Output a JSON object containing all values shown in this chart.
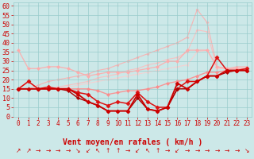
{
  "bg_color": "#cce8e8",
  "grid_color": "#99cccc",
  "xlabel": "Vent moyen/en rafales ( km/h )",
  "xlabel_color": "#cc0000",
  "xlabel_fontsize": 7,
  "tick_color": "#cc0000",
  "ylim": [
    0,
    62
  ],
  "xlim": [
    -0.5,
    23.5
  ],
  "yticks": [
    0,
    5,
    10,
    15,
    20,
    25,
    30,
    35,
    40,
    45,
    50,
    55,
    60
  ],
  "xticks": [
    0,
    1,
    2,
    3,
    4,
    5,
    6,
    7,
    8,
    9,
    10,
    11,
    12,
    13,
    14,
    15,
    16,
    17,
    18,
    19,
    20,
    21,
    22,
    23
  ],
  "lines": [
    {
      "y": [
        15,
        15,
        17,
        19,
        20,
        21,
        22,
        23,
        25,
        26,
        28,
        30,
        32,
        34,
        36,
        38,
        40,
        43,
        58,
        51,
        27,
        26,
        27,
        27
      ],
      "color": "#ffaaaa",
      "lw": 0.8,
      "marker": "D",
      "ms": 1.5,
      "alpha": 0.85,
      "zorder": 1
    },
    {
      "y": [
        15,
        15,
        15,
        15,
        16,
        17,
        18,
        19,
        21,
        22,
        23,
        25,
        26,
        28,
        29,
        31,
        32,
        35,
        47,
        46,
        26,
        26,
        26,
        26
      ],
      "color": "#ffbbbb",
      "lw": 0.8,
      "marker": "D",
      "ms": 1.5,
      "alpha": 0.85,
      "zorder": 1
    },
    {
      "y": [
        15,
        15,
        15,
        15,
        15,
        16,
        17,
        18,
        19,
        20,
        21,
        22,
        23,
        24,
        25,
        26,
        27,
        28,
        35,
        36,
        26,
        26,
        26,
        26
      ],
      "color": "#ffcccc",
      "lw": 0.8,
      "marker": "D",
      "ms": 1.5,
      "alpha": 0.8,
      "zorder": 1
    },
    {
      "y": [
        36,
        26,
        26,
        27,
        27,
        26,
        24,
        22,
        23,
        24,
        24,
        24,
        25,
        26,
        27,
        30,
        30,
        36,
        36,
        36,
        27,
        26,
        26,
        26
      ],
      "color": "#ffaaaa",
      "lw": 0.9,
      "marker": "D",
      "ms": 2.0,
      "alpha": 0.9,
      "zorder": 2
    },
    {
      "y": [
        15,
        19,
        15,
        15,
        15,
        15,
        15,
        15,
        14,
        12,
        13,
        14,
        14,
        15,
        16,
        18,
        19,
        20,
        22,
        24,
        24,
        25,
        25,
        26
      ],
      "color": "#ff8888",
      "lw": 1.0,
      "marker": "D",
      "ms": 2.0,
      "alpha": 0.85,
      "zorder": 2
    },
    {
      "y": [
        15,
        19,
        15,
        16,
        15,
        15,
        13,
        12,
        8,
        6,
        8,
        7,
        13,
        8,
        5,
        5,
        15,
        19,
        19,
        22,
        32,
        25,
        25,
        26
      ],
      "color": "#dd1111",
      "lw": 1.1,
      "marker": "D",
      "ms": 2.5,
      "alpha": 1.0,
      "zorder": 3
    },
    {
      "y": [
        15,
        15,
        15,
        15,
        15,
        15,
        12,
        8,
        6,
        3,
        3,
        3,
        12,
        4,
        3,
        5,
        18,
        15,
        19,
        22,
        22,
        25,
        25,
        25
      ],
      "color": "#cc0000",
      "lw": 1.3,
      "marker": "D",
      "ms": 2.5,
      "alpha": 1.0,
      "zorder": 4
    },
    {
      "y": [
        15,
        15,
        15,
        15,
        15,
        14,
        10,
        8,
        6,
        3,
        3,
        3,
        10,
        4,
        3,
        5,
        15,
        15,
        19,
        22,
        22,
        24,
        25,
        25
      ],
      "color": "#aa0000",
      "lw": 1.0,
      "marker": "D",
      "ms": 2.0,
      "alpha": 1.0,
      "zorder": 3
    }
  ],
  "arrows": [
    "↗",
    "↗",
    "→",
    "→",
    "→",
    "→",
    "↘",
    "↙",
    "↖",
    "↑",
    "↑",
    "→",
    "↙",
    "↖",
    "↑",
    "→",
    "↙",
    "→",
    "→",
    "→",
    "→",
    "→",
    "→",
    "↘"
  ],
  "arrow_color": "#cc0000",
  "arrow_fontsize": 5.5
}
